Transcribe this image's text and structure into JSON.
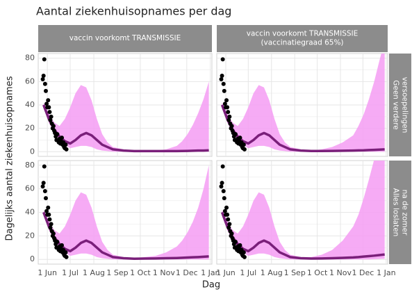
{
  "title": "Aantal ziekenhuisopnames per dag",
  "x_label": "Dag",
  "y_label": "Dagelijks aantal ziekenhuisopnames",
  "facets": {
    "columns": [
      [
        "vaccin voorkomt TRANSMISSIE"
      ],
      [
        "vaccin voorkomt TRANSMISSIE",
        "(vaccinatiegraad 65%)"
      ]
    ],
    "rows": [
      [
        "Geen verdere",
        "versoepelingen"
      ],
      [
        "Alles loslaten",
        "na de zomer"
      ]
    ]
  },
  "chart_data": [
    {
      "type": "line",
      "band_color": "#f59cf3",
      "line_color": "#7a1f7a",
      "point_color": "#000000",
      "xlim": [
        "20 May",
        "3 Jan"
      ],
      "xticks": [
        "1 Jun",
        "1 Jul",
        "1 Aug",
        "1 Sep",
        "1 Oct",
        "1 Nov",
        "1 Dec",
        "1 Jan"
      ],
      "ylim": [
        -4,
        84
      ],
      "yticks": [
        0,
        20,
        40,
        60,
        80
      ],
      "grid": true,
      "x": [
        "27 May",
        "3 Jun",
        "10 Jun",
        "17 Jun",
        "24 Jun",
        "1 Jul",
        "8 Jul",
        "15 Jul",
        "22 Jul",
        "29 Jul",
        "5 Aug",
        "12 Aug",
        "19 Aug",
        "26 Aug",
        "9 Sep",
        "23 Sep",
        "7 Oct",
        "21 Oct",
        "4 Nov",
        "18 Nov",
        "25 Nov",
        "2 Dec",
        "9 Dec",
        "16 Dec",
        "23 Dec",
        "30 Dec"
      ],
      "median": [
        40,
        28,
        19,
        13,
        9,
        7,
        10,
        14,
        16,
        14,
        10,
        6,
        4,
        2,
        1,
        0.5,
        0.5,
        0.5,
        0.5,
        0.5,
        0.6,
        0.7,
        0.8,
        1,
        1,
        1.2
      ],
      "lower": [
        37,
        25,
        16,
        10,
        6,
        3,
        4,
        5,
        5,
        4,
        2,
        1,
        0.5,
        0,
        0,
        0,
        0,
        0,
        0,
        0,
        0,
        0,
        0,
        0,
        0,
        0
      ],
      "upper": [
        42,
        33,
        25,
        22,
        28,
        38,
        50,
        57,
        55,
        44,
        28,
        15,
        8,
        4,
        2,
        1,
        1,
        1,
        2,
        5,
        9,
        15,
        23,
        33,
        45,
        60
      ],
      "points": {
        "x": [
          "26 May",
          "27 May",
          "28 May",
          "29 May",
          "30 May",
          "31 May",
          "1 Jun",
          "2 Jun",
          "3 Jun",
          "4 Jun",
          "5 Jun",
          "6 Jun",
          "7 Jun",
          "8 Jun",
          "9 Jun",
          "10 Jun",
          "11 Jun",
          "12 Jun",
          "13 Jun",
          "14 Jun",
          "15 Jun",
          "16 Jun",
          "17 Jun",
          "18 Jun",
          "19 Jun",
          "20 Jun",
          "21 Jun",
          "22 Jun",
          "23 Jun",
          "24 Jun",
          "25 Jun",
          "26 Jun"
        ],
        "values": [
          62,
          65,
          79,
          58,
          52,
          41,
          38,
          44,
          38,
          34,
          27,
          30,
          24,
          20,
          22,
          18,
          16,
          13,
          10,
          15,
          10,
          8,
          11,
          7,
          9,
          12,
          6,
          8,
          4,
          3,
          6,
          2
        ]
      }
    },
    {
      "type": "line",
      "band_color": "#f59cf3",
      "line_color": "#7a1f7a",
      "point_color": "#000000",
      "xlim": [
        "20 May",
        "3 Jan"
      ],
      "xticks": [
        "1 Jun",
        "1 Jul",
        "1 Aug",
        "1 Sep",
        "1 Oct",
        "1 Nov",
        "1 Dec",
        "1 Jan"
      ],
      "ylim": [
        -4,
        84
      ],
      "yticks": [
        0,
        20,
        40,
        60,
        80
      ],
      "grid": true,
      "x": [
        "27 May",
        "3 Jun",
        "10 Jun",
        "17 Jun",
        "24 Jun",
        "1 Jul",
        "8 Jul",
        "15 Jul",
        "22 Jul",
        "29 Jul",
        "5 Aug",
        "12 Aug",
        "19 Aug",
        "26 Aug",
        "9 Sep",
        "23 Sep",
        "7 Oct",
        "21 Oct",
        "4 Nov",
        "18 Nov",
        "25 Nov",
        "2 Dec",
        "9 Dec",
        "16 Dec",
        "23 Dec",
        "30 Dec"
      ],
      "median": [
        40,
        28,
        19,
        13,
        9,
        7,
        10,
        14,
        16,
        14,
        10,
        6,
        4,
        2,
        1,
        0.6,
        0.6,
        0.7,
        0.8,
        1,
        1.1,
        1.2,
        1.4,
        1.6,
        1.8,
        2
      ],
      "lower": [
        37,
        25,
        16,
        10,
        6,
        3,
        4,
        5,
        5,
        4,
        2,
        1,
        0.5,
        0,
        0,
        0,
        0,
        0,
        0,
        0,
        0,
        0,
        0,
        0,
        0,
        0
      ],
      "upper": [
        42,
        33,
        25,
        22,
        28,
        38,
        50,
        57,
        55,
        44,
        28,
        15,
        8,
        4,
        2,
        1,
        2,
        4,
        8,
        14,
        22,
        32,
        45,
        60,
        78,
        95
      ],
      "points": {
        "x": [
          "26 May",
          "27 May",
          "28 May",
          "29 May",
          "30 May",
          "31 May",
          "1 Jun",
          "2 Jun",
          "3 Jun",
          "4 Jun",
          "5 Jun",
          "6 Jun",
          "7 Jun",
          "8 Jun",
          "9 Jun",
          "10 Jun",
          "11 Jun",
          "12 Jun",
          "13 Jun",
          "14 Jun",
          "15 Jun",
          "16 Jun",
          "17 Jun",
          "18 Jun",
          "19 Jun",
          "20 Jun",
          "21 Jun",
          "22 Jun",
          "23 Jun",
          "24 Jun",
          "25 Jun",
          "26 Jun"
        ],
        "values": [
          62,
          65,
          79,
          58,
          52,
          41,
          38,
          44,
          38,
          34,
          27,
          30,
          24,
          20,
          22,
          18,
          16,
          13,
          10,
          15,
          10,
          8,
          11,
          7,
          9,
          12,
          6,
          8,
          4,
          3,
          6,
          2
        ]
      }
    },
    {
      "type": "line",
      "band_color": "#f59cf3",
      "line_color": "#7a1f7a",
      "point_color": "#000000",
      "xlim": [
        "20 May",
        "3 Jan"
      ],
      "xticks": [
        "1 Jun",
        "1 Jul",
        "1 Aug",
        "1 Sep",
        "1 Oct",
        "1 Nov",
        "1 Dec",
        "1 Jan"
      ],
      "ylim": [
        -4,
        84
      ],
      "yticks": [
        0,
        20,
        40,
        60,
        80
      ],
      "grid": true,
      "x": [
        "27 May",
        "3 Jun",
        "10 Jun",
        "17 Jun",
        "24 Jun",
        "1 Jul",
        "8 Jul",
        "15 Jul",
        "22 Jul",
        "29 Jul",
        "5 Aug",
        "12 Aug",
        "19 Aug",
        "26 Aug",
        "9 Sep",
        "23 Sep",
        "7 Oct",
        "21 Oct",
        "4 Nov",
        "18 Nov",
        "25 Nov",
        "2 Dec",
        "9 Dec",
        "16 Dec",
        "23 Dec",
        "30 Dec"
      ],
      "median": [
        40,
        28,
        19,
        13,
        9,
        7,
        10,
        14,
        16,
        14,
        10,
        6,
        4,
        2,
        1,
        0.6,
        0.7,
        0.8,
        1,
        1.2,
        1.4,
        1.6,
        1.8,
        2,
        2.3,
        2.6
      ],
      "lower": [
        37,
        25,
        16,
        10,
        6,
        3,
        4,
        5,
        5,
        4,
        2,
        1,
        0.5,
        0,
        0,
        0,
        0,
        0,
        0,
        0,
        0,
        0,
        0,
        0,
        0,
        0
      ],
      "upper": [
        42,
        33,
        25,
        22,
        28,
        38,
        50,
        57,
        55,
        44,
        28,
        15,
        8,
        4,
        2,
        1,
        2,
        3,
        6,
        11,
        16,
        23,
        32,
        44,
        60,
        80
      ],
      "points": {
        "x": [
          "26 May",
          "27 May",
          "28 May",
          "29 May",
          "30 May",
          "31 May",
          "1 Jun",
          "2 Jun",
          "3 Jun",
          "4 Jun",
          "5 Jun",
          "6 Jun",
          "7 Jun",
          "8 Jun",
          "9 Jun",
          "10 Jun",
          "11 Jun",
          "12 Jun",
          "13 Jun",
          "14 Jun",
          "15 Jun",
          "16 Jun",
          "17 Jun",
          "18 Jun",
          "19 Jun",
          "20 Jun",
          "21 Jun",
          "22 Jun",
          "23 Jun",
          "24 Jun",
          "25 Jun",
          "26 Jun"
        ],
        "values": [
          62,
          65,
          79,
          58,
          52,
          41,
          38,
          44,
          38,
          34,
          27,
          30,
          24,
          20,
          22,
          18,
          16,
          13,
          10,
          15,
          10,
          8,
          11,
          7,
          9,
          12,
          6,
          8,
          4,
          3,
          6,
          2
        ]
      }
    },
    {
      "type": "line",
      "band_color": "#f59cf3",
      "line_color": "#7a1f7a",
      "point_color": "#000000",
      "xlim": [
        "20 May",
        "3 Jan"
      ],
      "xticks": [
        "1 Jun",
        "1 Jul",
        "1 Aug",
        "1 Sep",
        "1 Oct",
        "1 Nov",
        "1 Dec",
        "1 Jan"
      ],
      "ylim": [
        -4,
        84
      ],
      "yticks": [
        0,
        20,
        40,
        60,
        80
      ],
      "grid": true,
      "x": [
        "27 May",
        "3 Jun",
        "10 Jun",
        "17 Jun",
        "24 Jun",
        "1 Jul",
        "8 Jul",
        "15 Jul",
        "22 Jul",
        "29 Jul",
        "5 Aug",
        "12 Aug",
        "19 Aug",
        "26 Aug",
        "9 Sep",
        "23 Sep",
        "7 Oct",
        "21 Oct",
        "4 Nov",
        "18 Nov",
        "25 Nov",
        "2 Dec",
        "9 Dec",
        "16 Dec",
        "23 Dec",
        "30 Dec"
      ],
      "median": [
        40,
        28,
        19,
        13,
        9,
        7,
        10,
        14,
        16,
        14,
        10,
        6,
        4,
        2,
        1,
        0.7,
        0.8,
        1,
        1.3,
        1.7,
        2,
        2.4,
        2.8,
        3.2,
        3.7,
        4.2
      ],
      "lower": [
        37,
        25,
        16,
        10,
        6,
        3,
        4,
        5,
        5,
        4,
        2,
        1,
        0.5,
        0,
        0,
        0,
        0,
        0,
        0,
        0,
        0,
        0,
        0,
        0.2,
        0.4,
        0.6
      ],
      "upper": [
        42,
        33,
        25,
        22,
        28,
        38,
        50,
        57,
        55,
        44,
        28,
        15,
        8,
        4,
        2,
        2,
        4,
        8,
        16,
        28,
        38,
        52,
        68,
        85,
        100,
        115
      ],
      "points": {
        "x": [
          "26 May",
          "27 May",
          "28 May",
          "29 May",
          "30 May",
          "31 May",
          "1 Jun",
          "2 Jun",
          "3 Jun",
          "4 Jun",
          "5 Jun",
          "6 Jun",
          "7 Jun",
          "8 Jun",
          "9 Jun",
          "10 Jun",
          "11 Jun",
          "12 Jun",
          "13 Jun",
          "14 Jun",
          "15 Jun",
          "16 Jun",
          "17 Jun",
          "18 Jun",
          "19 Jun",
          "20 Jun",
          "21 Jun",
          "22 Jun",
          "23 Jun",
          "24 Jun",
          "25 Jun",
          "26 Jun"
        ],
        "values": [
          62,
          65,
          79,
          58,
          52,
          41,
          38,
          44,
          38,
          34,
          27,
          30,
          24,
          20,
          22,
          18,
          16,
          13,
          10,
          15,
          10,
          8,
          11,
          7,
          9,
          12,
          6,
          8,
          4,
          3,
          6,
          2
        ]
      }
    }
  ]
}
